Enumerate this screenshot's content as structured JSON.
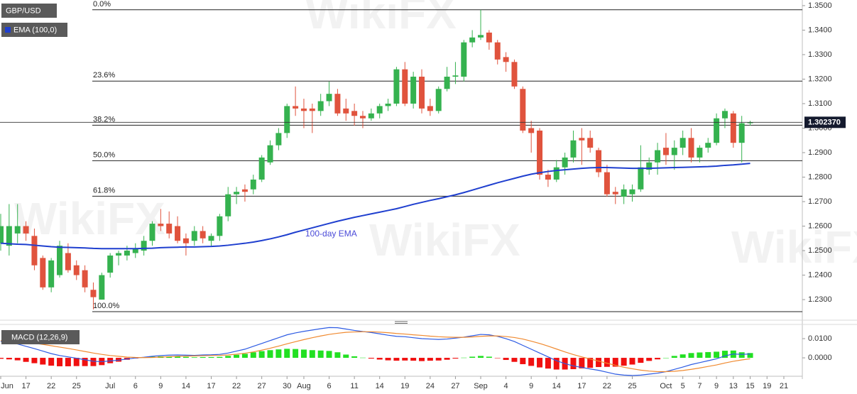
{
  "chart_data": [
    {
      "type": "candlestick",
      "symbol": "GBP/USD",
      "indicator": "EMA (100,0)",
      "annotation": "100-day EMA",
      "watermark": "WikiFX",
      "up_color": "#35b24f",
      "down_color": "#e0533d",
      "categories": [
        "Jun",
        null,
        null,
        "17",
        null,
        null,
        "22",
        null,
        null,
        "25",
        null,
        null,
        null,
        "Jul",
        null,
        null,
        "6",
        null,
        null,
        "9",
        null,
        null,
        "14",
        null,
        null,
        "17",
        null,
        null,
        "22",
        null,
        null,
        "27",
        null,
        null,
        "30",
        null,
        "Aug",
        null,
        null,
        "6",
        null,
        null,
        "11",
        null,
        null,
        "14",
        null,
        null,
        "19",
        null,
        null,
        "24",
        null,
        null,
        "27",
        null,
        null,
        "Sep",
        null,
        null,
        "4",
        null,
        null,
        "9",
        null,
        null,
        "14",
        null,
        null,
        "17",
        null,
        null,
        "22",
        null,
        null,
        "25",
        null,
        null,
        null,
        "Oct",
        null,
        "5",
        null,
        "7",
        null,
        "9",
        null,
        "13",
        null,
        "15",
        null,
        "19",
        null,
        "21"
      ],
      "open": [
        1.253,
        1.252,
        1.257,
        1.26,
        1.256,
        1.247,
        1.235,
        1.24,
        1.249,
        1.244,
        1.242,
        1.234,
        1.23,
        1.241,
        1.248,
        1.248,
        1.249,
        1.25,
        1.254,
        1.261,
        1.261,
        1.26,
        1.255,
        1.254,
        1.258,
        1.254,
        1.256,
        1.264,
        1.273,
        1.275,
        1.275,
        1.279,
        1.286,
        1.293,
        1.298,
        1.309,
        1.308,
        1.308,
        1.307,
        1.311,
        1.314,
        1.308,
        1.307,
        1.305,
        1.304,
        1.306,
        1.309,
        1.31,
        1.324,
        1.31,
        1.321,
        1.309,
        1.307,
        1.316,
        1.321,
        1.321,
        1.335,
        1.337,
        1.339,
        1.335,
        1.329,
        1.327,
        1.316,
        1.3,
        1.299,
        1.281,
        1.279,
        1.284,
        1.288,
        1.296,
        1.296,
        1.291,
        1.282,
        1.274,
        1.272,
        1.273,
        1.275,
        1.283,
        1.286,
        1.292,
        1.289,
        1.292,
        1.296,
        1.288,
        1.292,
        1.294,
        1.304,
        1.306,
        1.294,
        1.302,
        null,
        null,
        null,
        null
      ],
      "high": [
        1.265,
        1.269,
        1.269,
        1.262,
        1.259,
        1.248,
        1.247,
        1.254,
        1.253,
        1.246,
        1.244,
        1.237,
        1.241,
        1.249,
        1.25,
        1.252,
        1.253,
        1.256,
        1.262,
        1.267,
        1.266,
        1.264,
        1.257,
        1.26,
        1.26,
        1.257,
        1.265,
        1.276,
        1.276,
        1.277,
        1.281,
        1.289,
        1.295,
        1.3,
        1.31,
        1.317,
        1.312,
        1.31,
        1.314,
        1.319,
        1.316,
        1.312,
        1.31,
        1.307,
        1.308,
        1.31,
        1.312,
        1.325,
        1.327,
        1.323,
        1.324,
        1.312,
        1.317,
        1.325,
        1.327,
        1.336,
        1.34,
        1.3483,
        1.34,
        1.336,
        1.331,
        1.328,
        1.317,
        1.303,
        1.3,
        1.283,
        1.287,
        1.29,
        1.299,
        1.3,
        1.299,
        1.292,
        1.285,
        1.276,
        1.277,
        1.277,
        1.293,
        1.288,
        1.294,
        1.298,
        1.295,
        1.299,
        1.3,
        1.293,
        1.296,
        1.306,
        1.308,
        1.307,
        1.305,
        1.303,
        null,
        null,
        null,
        null
      ],
      "low": [
        1.25,
        1.248,
        1.253,
        1.254,
        1.242,
        1.234,
        1.233,
        1.239,
        1.241,
        1.238,
        1.233,
        1.226,
        1.23,
        1.239,
        1.244,
        1.246,
        1.247,
        1.248,
        1.252,
        1.258,
        1.255,
        1.253,
        1.248,
        1.252,
        1.253,
        1.252,
        1.254,
        1.262,
        1.269,
        1.27,
        1.273,
        1.278,
        1.285,
        1.291,
        1.296,
        1.305,
        1.3,
        1.298,
        1.305,
        1.309,
        1.305,
        1.303,
        1.301,
        1.3,
        1.303,
        1.304,
        1.307,
        1.309,
        1.309,
        1.308,
        1.306,
        1.305,
        1.306,
        1.315,
        1.318,
        1.319,
        1.333,
        1.336,
        1.332,
        1.326,
        1.323,
        1.316,
        1.298,
        1.29,
        1.279,
        1.276,
        1.278,
        1.281,
        1.286,
        1.285,
        1.29,
        1.28,
        1.272,
        1.269,
        1.269,
        1.27,
        1.274,
        1.281,
        1.281,
        1.285,
        1.283,
        1.289,
        1.286,
        1.286,
        1.29,
        1.293,
        1.3,
        1.292,
        1.286,
        1.301,
        null,
        null,
        null,
        null
      ],
      "close": [
        1.26,
        1.26,
        1.26,
        1.257,
        1.244,
        1.235,
        1.246,
        1.252,
        1.242,
        1.24,
        1.235,
        1.231,
        1.24,
        1.248,
        1.249,
        1.25,
        1.251,
        1.254,
        1.261,
        1.26,
        1.257,
        1.254,
        1.253,
        1.258,
        1.255,
        1.256,
        1.264,
        1.273,
        1.274,
        1.274,
        1.279,
        1.288,
        1.293,
        1.298,
        1.309,
        1.308,
        1.307,
        1.307,
        1.311,
        1.314,
        1.306,
        1.306,
        1.305,
        1.304,
        1.306,
        1.309,
        1.31,
        1.324,
        1.31,
        1.321,
        1.308,
        1.307,
        1.316,
        1.321,
        1.3215,
        1.335,
        1.337,
        1.338,
        1.335,
        1.328,
        1.327,
        1.317,
        1.299,
        1.298,
        1.281,
        1.279,
        1.284,
        1.288,
        1.295,
        1.295,
        1.292,
        1.282,
        1.273,
        1.273,
        1.275,
        1.275,
        1.284,
        1.286,
        1.291,
        1.289,
        1.292,
        1.296,
        1.288,
        1.292,
        1.294,
        1.304,
        1.307,
        1.294,
        1.302,
        1.3024,
        null,
        null,
        null,
        null
      ],
      "series": [
        {
          "color": "#1f3fcf",
          "values": [
            1.253,
            1.2528,
            1.2526,
            1.2525,
            1.2522,
            1.2519,
            1.2516,
            1.2514,
            1.2513,
            1.2512,
            1.2511,
            1.2509,
            1.2508,
            1.2508,
            1.2508,
            1.2508,
            1.2508,
            1.2509,
            1.251,
            1.2512,
            1.2513,
            1.2514,
            1.2515,
            1.2515,
            1.2516,
            1.2517,
            1.2519,
            1.2522,
            1.2526,
            1.253,
            1.2535,
            1.2541,
            1.2548,
            1.2556,
            1.2565,
            1.2575,
            1.2584,
            1.2593,
            1.2602,
            1.2611,
            1.262,
            1.2628,
            1.2636,
            1.2643,
            1.265,
            1.2657,
            1.2664,
            1.2671,
            1.268,
            1.2689,
            1.2697,
            1.2705,
            1.2712,
            1.272,
            1.2728,
            1.2737,
            1.2747,
            1.2757,
            1.2767,
            1.2777,
            1.2786,
            1.2795,
            1.2804,
            1.2812,
            1.2818,
            1.2823,
            1.2827,
            1.283,
            1.2833,
            1.2836,
            1.2838,
            1.2839,
            1.2839,
            1.2838,
            1.2837,
            1.2836,
            1.2836,
            1.2836,
            1.2837,
            1.2838,
            1.2839,
            1.284,
            1.2841,
            1.2842,
            1.2843,
            1.2845,
            1.2848,
            1.285,
            1.2853,
            1.2856,
            null,
            null,
            null,
            null
          ]
        }
      ],
      "fib_levels": [
        {
          "label": "0.0%",
          "value": 1.3483
        },
        {
          "label": "23.6%",
          "value": 1.3192
        },
        {
          "label": "38.2%",
          "value": 1.3012
        },
        {
          "label": "50.0%",
          "value": 1.2867
        },
        {
          "label": "61.8%",
          "value": 1.2722
        },
        {
          "label": "100.0%",
          "value": 1.2251
        }
      ],
      "last_price": {
        "value": 1.30237,
        "label": "1.302370"
      },
      "ylim": [
        1.2219,
        1.3523
      ],
      "yticks": [
        {
          "value": 1.35,
          "label": "1.3500"
        },
        {
          "value": 1.34,
          "label": "1.3400"
        },
        {
          "value": 1.33,
          "label": "1.3300"
        },
        {
          "value": 1.32,
          "label": "1.3200"
        },
        {
          "value": 1.31,
          "label": "1.3100"
        },
        {
          "value": 1.3,
          "label": "1.3000"
        },
        {
          "value": 1.29,
          "label": "1.2900"
        },
        {
          "value": 1.28,
          "label": "1.2800"
        },
        {
          "value": 1.27,
          "label": "1.2700"
        },
        {
          "value": 1.26,
          "label": "1.2600"
        },
        {
          "value": 1.25,
          "label": "1.2500"
        },
        {
          "value": 1.24,
          "label": "1.2400"
        },
        {
          "value": 1.23,
          "label": "1.2300"
        }
      ]
    },
    {
      "type": "macd",
      "title": "MACD (12,26,9)",
      "up_color": "#22e022",
      "down_color": "#f01010",
      "ylim": [
        -0.0096,
        0.0163
      ],
      "yticks": [
        {
          "value": 0.01,
          "label": "0.0100"
        },
        {
          "value": 0,
          "label": "0.0000"
        }
      ],
      "series": [
        {
          "kind": "histogram",
          "values": [
            -0.0005,
            -0.0008,
            -0.0013,
            -0.0021,
            -0.0028,
            -0.0035,
            -0.0041,
            -0.0044,
            -0.0044,
            -0.0043,
            -0.0043,
            -0.0043,
            -0.0038,
            -0.0028,
            -0.002,
            -0.001,
            -0.0003,
            0.0002,
            0.0006,
            0.0008,
            0.0008,
            0.0007,
            0.0005,
            0.0003,
            0.0004,
            0.0004,
            0.0005,
            0.001,
            0.0016,
            0.0021,
            0.0029,
            0.0035,
            0.004,
            0.0044,
            0.0047,
            0.0046,
            0.0043,
            0.004,
            0.0038,
            0.0036,
            0.0029,
            0.0017,
            0.0008,
            0.0001,
            -0.0004,
            -0.0009,
            -0.0013,
            -0.0015,
            -0.0014,
            -0.0015,
            -0.0017,
            -0.0015,
            -0.0014,
            -0.001,
            -0.0004,
            0.0001,
            0.0006,
            0.001,
            0.0006,
            -0.0002,
            -0.0011,
            -0.0021,
            -0.0033,
            -0.0042,
            -0.005,
            -0.0056,
            -0.0061,
            -0.0061,
            -0.0059,
            -0.0055,
            -0.0052,
            -0.0048,
            -0.0047,
            -0.0046,
            -0.0041,
            -0.0035,
            -0.0026,
            -0.0016,
            -0.0008,
            0.0,
            0.001,
            0.0018,
            0.0025,
            0.0028,
            0.003,
            0.0032,
            0.0037,
            0.0038,
            0.0029,
            0.0025,
            null,
            null,
            null,
            null
          ]
        },
        {
          "kind": "line",
          "color": "#2d5be3",
          "values": [
            0.0085,
            0.008,
            0.0072,
            0.006,
            0.0048,
            0.0035,
            0.0022,
            0.0012,
            0.0005,
            -0.0002,
            -0.001,
            -0.0018,
            -0.002,
            -0.0016,
            -0.0012,
            -0.0006,
            -0.0001,
            0.0003,
            0.0008,
            0.0012,
            0.0014,
            0.0015,
            0.0014,
            0.0013,
            0.0015,
            0.0016,
            0.0018,
            0.0025,
            0.0035,
            0.0045,
            0.006,
            0.0075,
            0.009,
            0.0105,
            0.012,
            0.013,
            0.0138,
            0.0145,
            0.0152,
            0.0158,
            0.0157,
            0.015,
            0.0143,
            0.0137,
            0.0132,
            0.0125,
            0.0118,
            0.0112,
            0.011,
            0.0105,
            0.01,
            0.0098,
            0.0096,
            0.0098,
            0.0103,
            0.0108,
            0.0115,
            0.0122,
            0.012,
            0.0112,
            0.01,
            0.0085,
            0.0065,
            0.0045,
            0.0025,
            0.0005,
            -0.0015,
            -0.003,
            -0.0042,
            -0.005,
            -0.0058,
            -0.0065,
            -0.0075,
            -0.0085,
            -0.009,
            -0.0092,
            -0.009,
            -0.0085,
            -0.008,
            -0.0072,
            -0.006,
            -0.0048,
            -0.0035,
            -0.0025,
            -0.0015,
            -0.0005,
            0.001,
            0.002,
            0.0018,
            0.002,
            null,
            null,
            null,
            null
          ]
        },
        {
          "kind": "line",
          "color": "#f08a30",
          "values": [
            0.009,
            0.0088,
            0.0085,
            0.0081,
            0.0076,
            0.007,
            0.0063,
            0.0056,
            0.0049,
            0.0041,
            0.0033,
            0.0025,
            0.0018,
            0.0012,
            0.0008,
            0.0004,
            0.0002,
            0.0001,
            0.0002,
            0.0004,
            0.0006,
            0.0008,
            0.0009,
            0.001,
            0.0011,
            0.0012,
            0.0013,
            0.0015,
            0.0019,
            0.0024,
            0.0031,
            0.004,
            0.005,
            0.0061,
            0.0073,
            0.0084,
            0.0095,
            0.0105,
            0.0114,
            0.0122,
            0.0128,
            0.0133,
            0.0135,
            0.0136,
            0.0136,
            0.0134,
            0.0131,
            0.0127,
            0.0124,
            0.012,
            0.0117,
            0.0113,
            0.011,
            0.0108,
            0.0107,
            0.0107,
            0.0109,
            0.0112,
            0.0114,
            0.0114,
            0.0111,
            0.0106,
            0.0098,
            0.0087,
            0.0075,
            0.0061,
            0.0046,
            0.0031,
            0.0017,
            0.0005,
            -0.0006,
            -0.0017,
            -0.0028,
            -0.0039,
            -0.0049,
            -0.0057,
            -0.0064,
            -0.0069,
            -0.0072,
            -0.0072,
            -0.007,
            -0.0066,
            -0.006,
            -0.0053,
            -0.0045,
            -0.0037,
            -0.0027,
            -0.0018,
            -0.0011,
            -0.0005,
            null,
            null,
            null,
            null
          ]
        }
      ]
    }
  ]
}
